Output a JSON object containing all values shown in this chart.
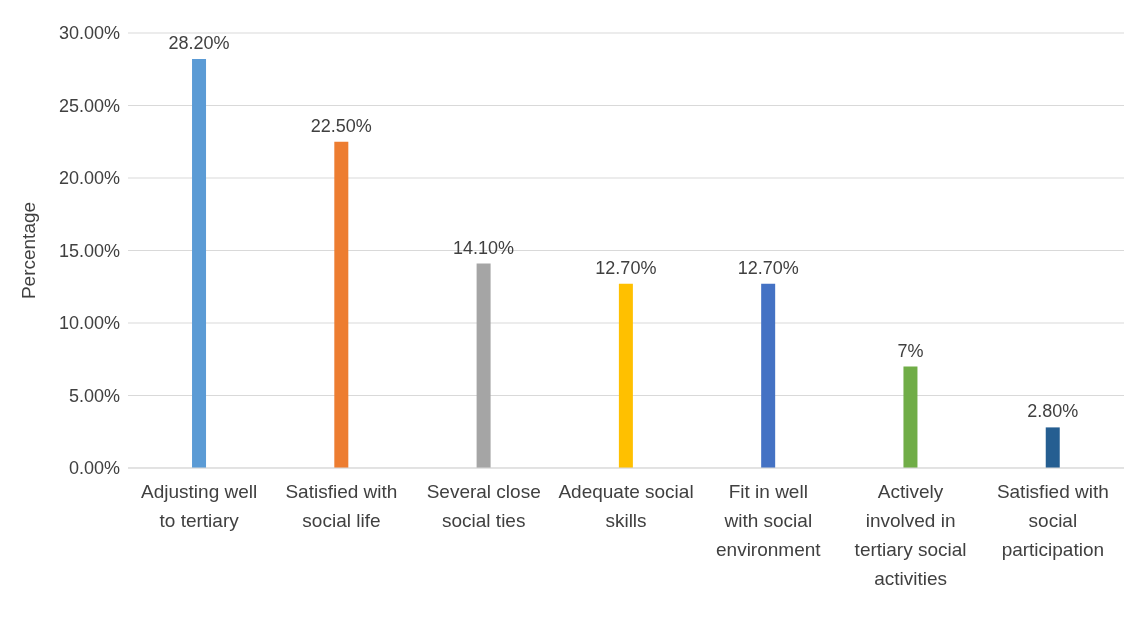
{
  "chart_data": {
    "type": "bar",
    "ylabel": "Percentage",
    "categories": [
      "Adjusting well to tertiary",
      "Satisfied with social life",
      "Several close social ties",
      "Adequate social skills",
      "Fit in well with social environment",
      "Actively involved in tertiary social activities",
      "Satisfied with social participation"
    ],
    "values": [
      28.2,
      22.5,
      14.1,
      12.7,
      12.7,
      7,
      2.8
    ],
    "colors": [
      "#5b9bd5",
      "#ed7d31",
      "#a5a5a5",
      "#ffc000",
      "#4472c4",
      "#70ad47",
      "#255e91"
    ],
    "value_labels": [
      "28.20%",
      "22.50%",
      "14.10%",
      "12.70%",
      "12.70%",
      "7%",
      "2.80%"
    ],
    "ylim": [
      0,
      30
    ],
    "yticks": [
      {
        "value": 0,
        "label": "0.00%"
      },
      {
        "value": 5,
        "label": "5.00%"
      },
      {
        "value": 10,
        "label": "10.00%"
      },
      {
        "value": 15,
        "label": "15.00%"
      },
      {
        "value": 20,
        "label": "20.00%"
      },
      {
        "value": 25,
        "label": "25.00%"
      },
      {
        "value": 30,
        "label": "30.00%"
      }
    ],
    "grid": "y"
  }
}
